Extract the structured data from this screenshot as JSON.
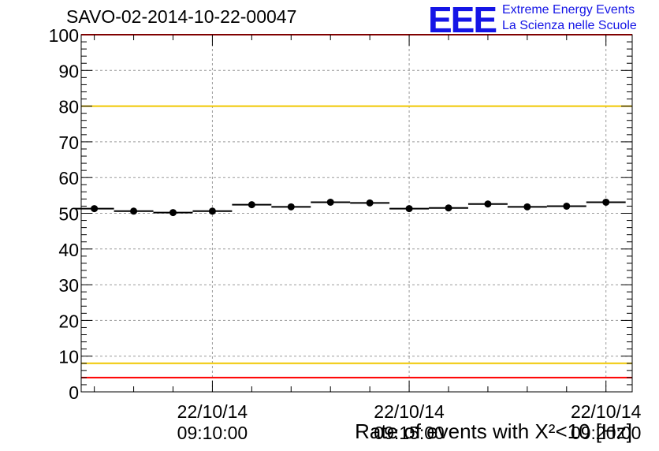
{
  "run_title": "SAVO-02-2014-10-22-00047",
  "logo": {
    "mark": "EEE",
    "line1": "Extreme Energy Events",
    "line2": "La Scienza nelle Scuole"
  },
  "colors": {
    "logo": "#1515e6",
    "upper_red": "#ff0000",
    "yellow": "#f0c800",
    "lower_red": "#ff0000",
    "points": "#000000"
  },
  "chart_data": {
    "type": "scatter",
    "title": "SAVO-02-2014-10-22-00047",
    "xlabel": "Rate of events with X²<10 [Hz]",
    "ylabel": "",
    "ylim": [
      0,
      100
    ],
    "yticks": [
      0,
      10,
      20,
      30,
      40,
      50,
      60,
      70,
      80,
      90,
      100
    ],
    "xlim": [
      "22/10/14 09:06:40",
      "22/10/14 09:20:40"
    ],
    "xticks": [
      {
        "date": "22/10/14",
        "time": "09:10:00"
      },
      {
        "date": "22/10/14",
        "time": "09:15:00"
      },
      {
        "date": "22/10/14",
        "time": "09:20:00"
      }
    ],
    "grid": true,
    "series": [
      {
        "points": [
          {
            "x": "09:07:00",
            "y": 51.3
          },
          {
            "x": "09:08:00",
            "y": 50.6
          },
          {
            "x": "09:09:00",
            "y": 50.2
          },
          {
            "x": "09:10:00",
            "y": 50.6
          },
          {
            "x": "09:11:00",
            "y": 52.4
          },
          {
            "x": "09:12:00",
            "y": 51.8
          },
          {
            "x": "09:13:00",
            "y": 53.1
          },
          {
            "x": "09:14:00",
            "y": 52.9
          },
          {
            "x": "09:15:00",
            "y": 51.3
          },
          {
            "x": "09:16:00",
            "y": 51.5
          },
          {
            "x": "09:17:00",
            "y": 52.6
          },
          {
            "x": "09:18:00",
            "y": 51.8
          },
          {
            "x": "09:19:00",
            "y": 52.0
          },
          {
            "x": "09:20:00",
            "y": 53.1
          }
        ],
        "bin_width_s": 60
      }
    ],
    "reference_lines": [
      {
        "y": 100,
        "color": "red"
      },
      {
        "y": 80,
        "color": "yellow"
      },
      {
        "y": 8,
        "color": "yellow"
      },
      {
        "y": 4,
        "color": "red"
      }
    ]
  }
}
